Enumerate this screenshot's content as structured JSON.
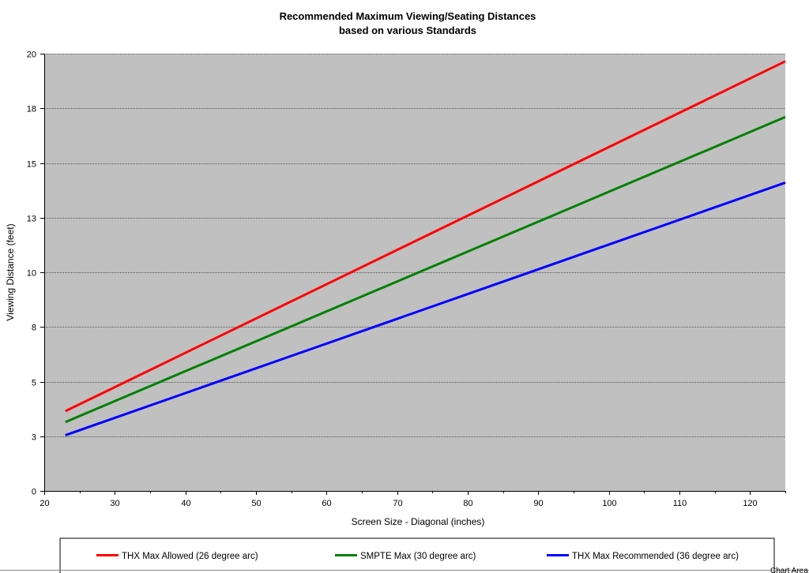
{
  "chart_data": {
    "type": "line",
    "title": "Recommended Maximum Viewing/Seating Distances",
    "subtitle": "based on various Standards",
    "xlabel": "Screen Size - Diagonal (inches)",
    "ylabel": "Viewing Distance (feet)",
    "xlim": [
      20,
      125
    ],
    "ylim": [
      0,
      20
    ],
    "x_ticks": [
      20,
      30,
      40,
      50,
      60,
      70,
      80,
      90,
      100,
      110,
      120
    ],
    "y_ticks": [
      0,
      2.5,
      5,
      7.5,
      10,
      12.5,
      15,
      17.5,
      20
    ],
    "y_tick_labels": [
      "0",
      "3",
      "5",
      "8",
      "10",
      "13",
      "15",
      "18",
      "20"
    ],
    "grid": "horizontal",
    "plot_background": "#c0c0c0",
    "legend_position": "bottom",
    "series": [
      {
        "name": "THX Max Allowed (26 degree arc)",
        "color": "#ff0000",
        "x": [
          23,
          125
        ],
        "y": [
          3.65,
          19.65
        ]
      },
      {
        "name": "SMPTE Max (30 degree arc)",
        "color": "#008000",
        "x": [
          23,
          125
        ],
        "y": [
          3.15,
          17.1
        ]
      },
      {
        "name": "THX Max Recommended (36 degree arc)",
        "color": "#0000ff",
        "x": [
          23,
          125
        ],
        "y": [
          2.55,
          14.1
        ]
      }
    ]
  },
  "footer": {
    "chart_area_label": "Chart Area"
  }
}
